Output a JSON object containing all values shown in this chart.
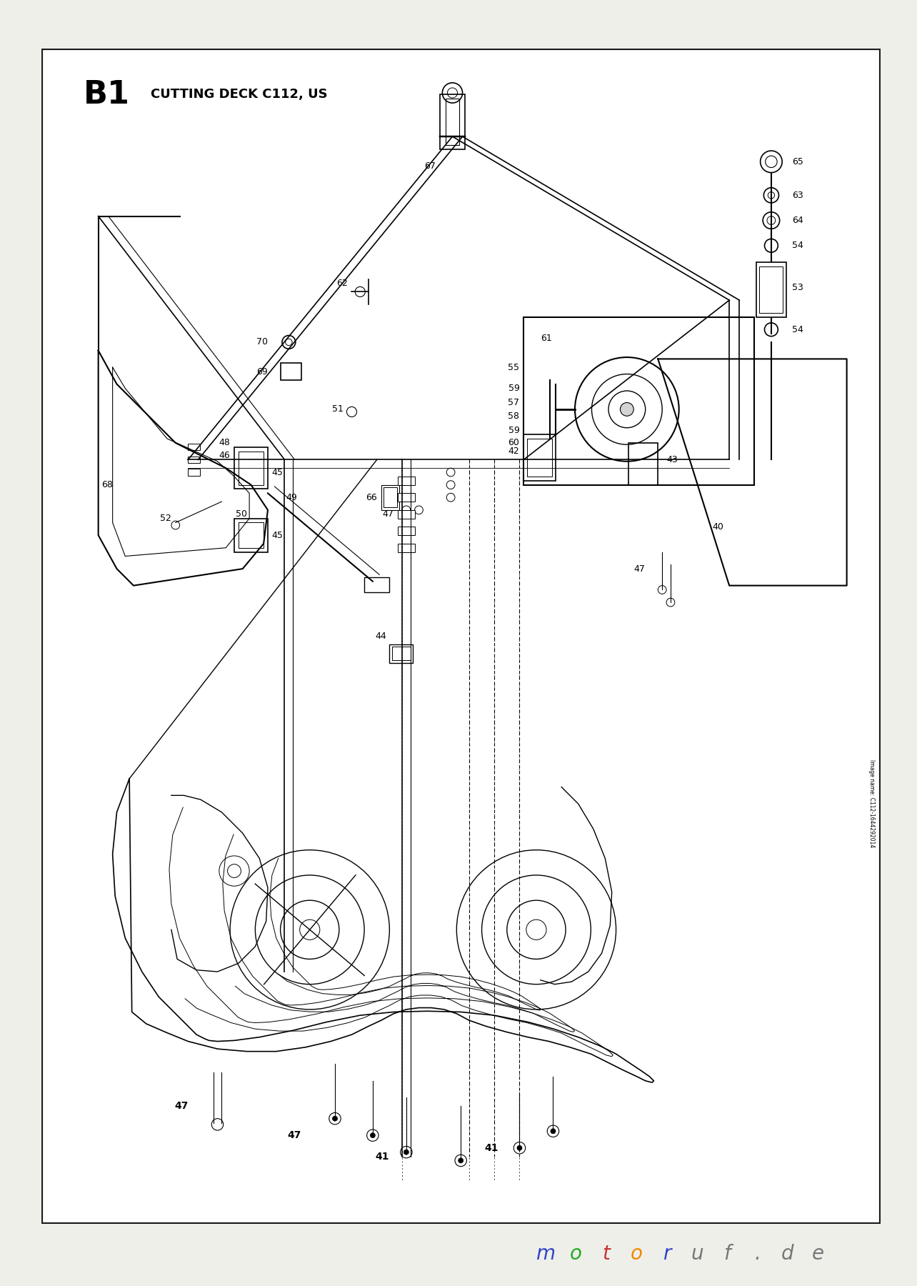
{
  "title": "B1",
  "subtitle": "CUTTING DECK C112, US",
  "bg_color": "#FFFFFF",
  "border_color": "#1a1a1a",
  "page_bg": "#EFEFEA",
  "image_credit": "Image name: C112-1644292014",
  "watermark_letters": [
    {
      "char": "m",
      "color": "#3344CC"
    },
    {
      "char": "o",
      "color": "#22AA22"
    },
    {
      "char": "t",
      "color": "#CC3333"
    },
    {
      "char": "o",
      "color": "#EE8800"
    },
    {
      "char": "r",
      "color": "#3344CC"
    },
    {
      "char": "u",
      "color": "#777777"
    },
    {
      "char": "f",
      "color": "#777777"
    },
    {
      "char": ".",
      "color": "#777777"
    },
    {
      "char": "d",
      "color": "#777777"
    },
    {
      "char": "e",
      "color": "#777777"
    }
  ]
}
